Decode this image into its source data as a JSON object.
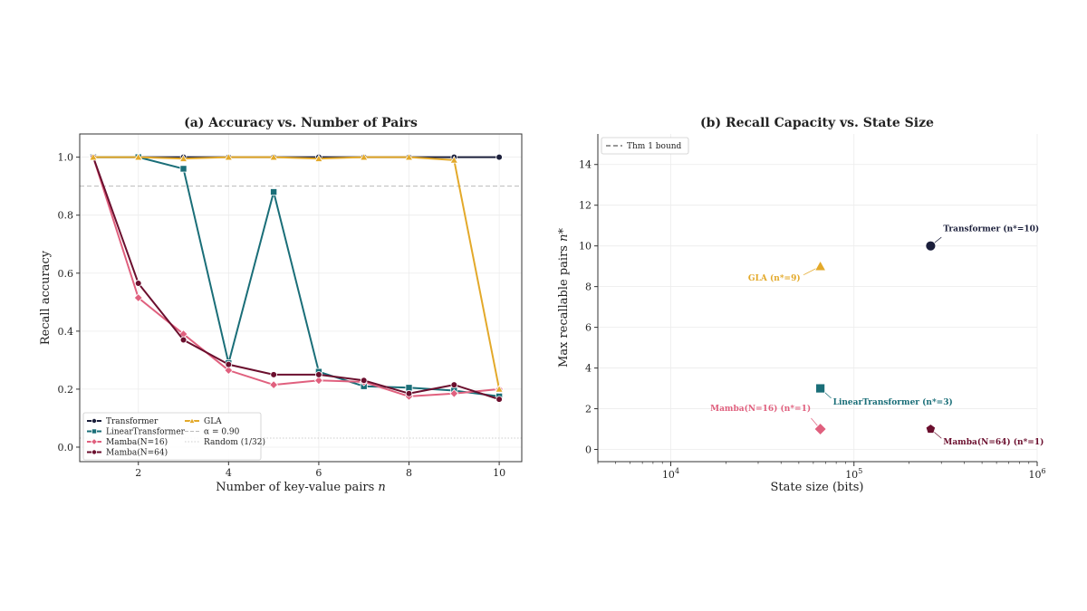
{
  "chart_data": [
    {
      "type": "line",
      "title": "(a) Accuracy vs. Number of Pairs",
      "xlabel": "Number of key-value pairs n",
      "ylabel": "Recall accuracy",
      "xlim": [
        0.7,
        10.5
      ],
      "ylim": [
        -0.05,
        1.08
      ],
      "xticks": [
        2,
        4,
        6,
        8,
        10
      ],
      "yticks": [
        0.0,
        0.2,
        0.4,
        0.6,
        0.8,
        1.0
      ],
      "grid": true,
      "legend": "lower-left",
      "x": [
        1,
        2,
        3,
        4,
        5,
        6,
        7,
        8,
        9,
        10
      ],
      "series": [
        {
          "name": "Transformer",
          "marker": "circle",
          "color": "#1b1f3b",
          "values": [
            1.0,
            1.0,
            1.0,
            1.0,
            1.0,
            1.0,
            1.0,
            1.0,
            1.0,
            1.0
          ]
        },
        {
          "name": "LinearTransformer",
          "marker": "square",
          "color": "#1a6e78",
          "values": [
            1.0,
            1.0,
            0.96,
            0.29,
            0.88,
            0.26,
            0.21,
            0.205,
            0.195,
            0.175
          ]
        },
        {
          "name": "Mamba(N=16)",
          "marker": "diamond",
          "color": "#e0607e",
          "values": [
            1.0,
            0.515,
            0.39,
            0.265,
            0.215,
            0.23,
            0.225,
            0.175,
            0.185,
            0.2
          ]
        },
        {
          "name": "Mamba(N=64)",
          "marker": "circle",
          "color": "#6b0f2e",
          "values": [
            1.0,
            0.565,
            0.37,
            0.285,
            0.25,
            0.25,
            0.23,
            0.185,
            0.215,
            0.165
          ]
        },
        {
          "name": "GLA",
          "marker": "triangle",
          "color": "#e3a92a",
          "values": [
            1.0,
            1.0,
            0.995,
            1.0,
            1.0,
            0.995,
            1.0,
            1.0,
            0.99,
            0.2
          ]
        }
      ],
      "reference_lines": [
        {
          "name": "α = 0.90",
          "y": 0.9,
          "style": "dashed",
          "color": "#bbbbbb"
        },
        {
          "name": "Random (1/32)",
          "y": 0.03125,
          "style": "dotted",
          "color": "#cccccc"
        }
      ]
    },
    {
      "type": "scatter",
      "title": "(b) Recall Capacity vs. State Size",
      "xlabel": "State size (bits)",
      "ylabel": "Max recallable pairs n*",
      "xscale": "log",
      "xlim": [
        4000,
        1000000
      ],
      "ylim": [
        -0.6,
        15.5
      ],
      "xticks_labels": [
        {
          "base": "10",
          "exp": "4",
          "value": 10000
        },
        {
          "base": "10",
          "exp": "5",
          "value": 100000
        },
        {
          "base": "10",
          "exp": "6",
          "value": 1000000
        }
      ],
      "yticks": [
        0,
        2,
        4,
        6,
        8,
        10,
        12,
        14
      ],
      "grid": true,
      "legend": "top-left",
      "legend_entries": [
        "Thm 1 bound"
      ],
      "points": [
        {
          "name": "Transformer",
          "label": "Transformer (n*=10)",
          "x": 262144,
          "y": 10,
          "marker": "circle",
          "color": "#1b1f3b"
        },
        {
          "name": "GLA",
          "label": "GLA (n*=9)",
          "x": 65536,
          "y": 9,
          "marker": "triangle",
          "color": "#e3a92a"
        },
        {
          "name": "LinearTransformer",
          "label": "LinearTransformer (n*=3)",
          "x": 65536,
          "y": 3,
          "marker": "square",
          "color": "#1a6e78"
        },
        {
          "name": "Mamba(N=16)",
          "label": "Mamba(N=16) (n*=1)",
          "x": 65536,
          "y": 1,
          "marker": "diamond",
          "color": "#e0607e"
        },
        {
          "name": "Mamba(N=64)",
          "label": "Mamba(N=64) (n*=1)",
          "x": 262144,
          "y": 1,
          "marker": "pentagon",
          "color": "#6b0f2e"
        }
      ]
    }
  ]
}
